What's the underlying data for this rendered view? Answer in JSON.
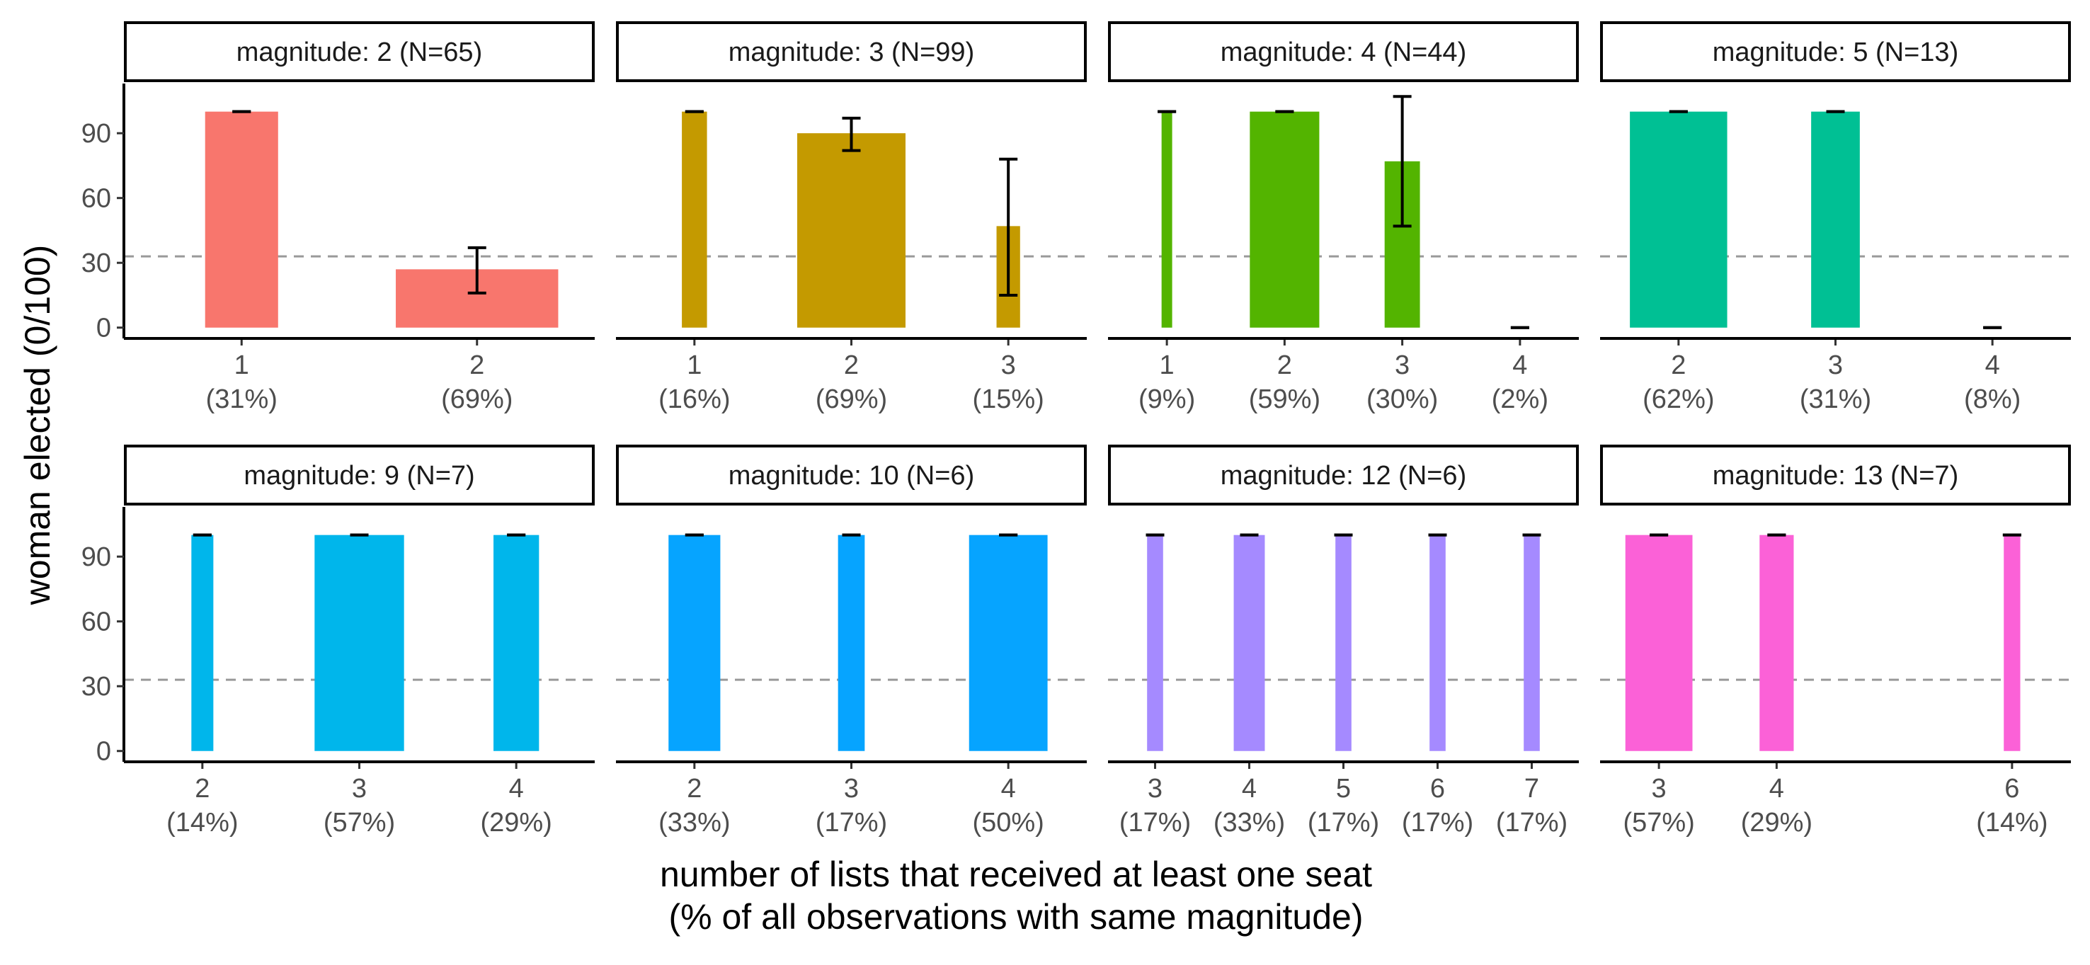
{
  "chart_data": {
    "type": "bar",
    "ylabel": "woman elected (0/100)",
    "xlabel_line1": "number of lists that received at least one seat",
    "xlabel_line2": "(% of all observations with same magnitude)",
    "ylim": [
      -5,
      113
    ],
    "y_ticks": [
      0,
      30,
      60,
      90
    ],
    "reference_line": 33,
    "grid": false,
    "legend": "none",
    "panels": [
      {
        "strip": "magnitude: 2 (N=65)",
        "color": "#F8766D",
        "xlim": [
          0.5,
          2.5
        ],
        "bars": [
          {
            "x": 1,
            "tick": "1",
            "share": "(31%)",
            "width": 0.31,
            "value": 100,
            "ci": [
              100,
              100
            ]
          },
          {
            "x": 2,
            "tick": "2",
            "share": "(69%)",
            "width": 0.69,
            "value": 27,
            "ci": [
              16,
              37
            ]
          }
        ]
      },
      {
        "strip": "magnitude: 3 (N=99)",
        "color": "#C49A00",
        "xlim": [
          0.5,
          3.5
        ],
        "bars": [
          {
            "x": 1,
            "tick": "1",
            "share": "(16%)",
            "width": 0.16,
            "value": 100,
            "ci": [
              100,
              100
            ]
          },
          {
            "x": 2,
            "tick": "2",
            "share": "(69%)",
            "width": 0.69,
            "value": 90,
            "ci": [
              82,
              97
            ]
          },
          {
            "x": 3,
            "tick": "3",
            "share": "(15%)",
            "width": 0.15,
            "value": 47,
            "ci": [
              15,
              78
            ]
          }
        ]
      },
      {
        "strip": "magnitude: 4 (N=44)",
        "color": "#53B400",
        "xlim": [
          0.5,
          4.5
        ],
        "bars": [
          {
            "x": 1,
            "tick": "1",
            "share": "(9%)",
            "width": 0.09,
            "value": 100,
            "ci": [
              100,
              100
            ]
          },
          {
            "x": 2,
            "tick": "2",
            "share": "(59%)",
            "width": 0.59,
            "value": 100,
            "ci": [
              100,
              100
            ]
          },
          {
            "x": 3,
            "tick": "3",
            "share": "(30%)",
            "width": 0.3,
            "value": 77,
            "ci": [
              47,
              107
            ]
          },
          {
            "x": 4,
            "tick": "4",
            "share": "(2%)",
            "width": 0.02,
            "value": 0,
            "ci": [
              0,
              0
            ]
          }
        ]
      },
      {
        "strip": "magnitude: 5 (N=13)",
        "color": "#00C094",
        "xlim": [
          1.5,
          4.5
        ],
        "bars": [
          {
            "x": 2,
            "tick": "2",
            "share": "(62%)",
            "width": 0.62,
            "value": 100,
            "ci": [
              100,
              100
            ]
          },
          {
            "x": 3,
            "tick": "3",
            "share": "(31%)",
            "width": 0.31,
            "value": 100,
            "ci": [
              100,
              100
            ]
          },
          {
            "x": 4,
            "tick": "4",
            "share": "(8%)",
            "width": 0.08,
            "value": 0,
            "ci": [
              0,
              0
            ]
          }
        ]
      },
      {
        "strip": "magnitude: 9 (N=7)",
        "color": "#00B6EB",
        "xlim": [
          1.5,
          4.5
        ],
        "bars": [
          {
            "x": 2,
            "tick": "2",
            "share": "(14%)",
            "width": 0.14,
            "value": 100,
            "ci": [
              100,
              100
            ]
          },
          {
            "x": 3,
            "tick": "3",
            "share": "(57%)",
            "width": 0.57,
            "value": 100,
            "ci": [
              100,
              100
            ]
          },
          {
            "x": 4,
            "tick": "4",
            "share": "(29%)",
            "width": 0.29,
            "value": 100,
            "ci": [
              100,
              100
            ]
          }
        ]
      },
      {
        "strip": "magnitude: 10 (N=6)",
        "color": "#06A4FF",
        "xlim": [
          1.5,
          4.5
        ],
        "bars": [
          {
            "x": 2,
            "tick": "2",
            "share": "(33%)",
            "width": 0.33,
            "value": 100,
            "ci": [
              100,
              100
            ]
          },
          {
            "x": 3,
            "tick": "3",
            "share": "(17%)",
            "width": 0.17,
            "value": 100,
            "ci": [
              100,
              100
            ]
          },
          {
            "x": 4,
            "tick": "4",
            "share": "(50%)",
            "width": 0.5,
            "value": 100,
            "ci": [
              100,
              100
            ]
          }
        ]
      },
      {
        "strip": "magnitude: 12 (N=6)",
        "color": "#A58AFF",
        "xlim": [
          2.5,
          7.5
        ],
        "bars": [
          {
            "x": 3,
            "tick": "3",
            "share": "(17%)",
            "width": 0.17,
            "value": 100,
            "ci": [
              100,
              100
            ]
          },
          {
            "x": 4,
            "tick": "4",
            "share": "(33%)",
            "width": 0.33,
            "value": 100,
            "ci": [
              100,
              100
            ]
          },
          {
            "x": 5,
            "tick": "5",
            "share": "(17%)",
            "width": 0.17,
            "value": 100,
            "ci": [
              100,
              100
            ]
          },
          {
            "x": 6,
            "tick": "6",
            "share": "(17%)",
            "width": 0.17,
            "value": 100,
            "ci": [
              100,
              100
            ]
          },
          {
            "x": 7,
            "tick": "7",
            "share": "(17%)",
            "width": 0.17,
            "value": 100,
            "ci": [
              100,
              100
            ]
          }
        ]
      },
      {
        "strip": "magnitude: 13 (N=7)",
        "color": "#FB61D7",
        "xlim": [
          2.5,
          6.5
        ],
        "bars": [
          {
            "x": 3,
            "tick": "3",
            "share": "(57%)",
            "width": 0.57,
            "value": 100,
            "ci": [
              100,
              100
            ]
          },
          {
            "x": 4,
            "tick": "4",
            "share": "(29%)",
            "width": 0.29,
            "value": 100,
            "ci": [
              100,
              100
            ]
          },
          {
            "x": 6,
            "tick": "6",
            "share": "(14%)",
            "width": 0.14,
            "value": 100,
            "ci": [
              100,
              100
            ]
          }
        ]
      }
    ]
  }
}
